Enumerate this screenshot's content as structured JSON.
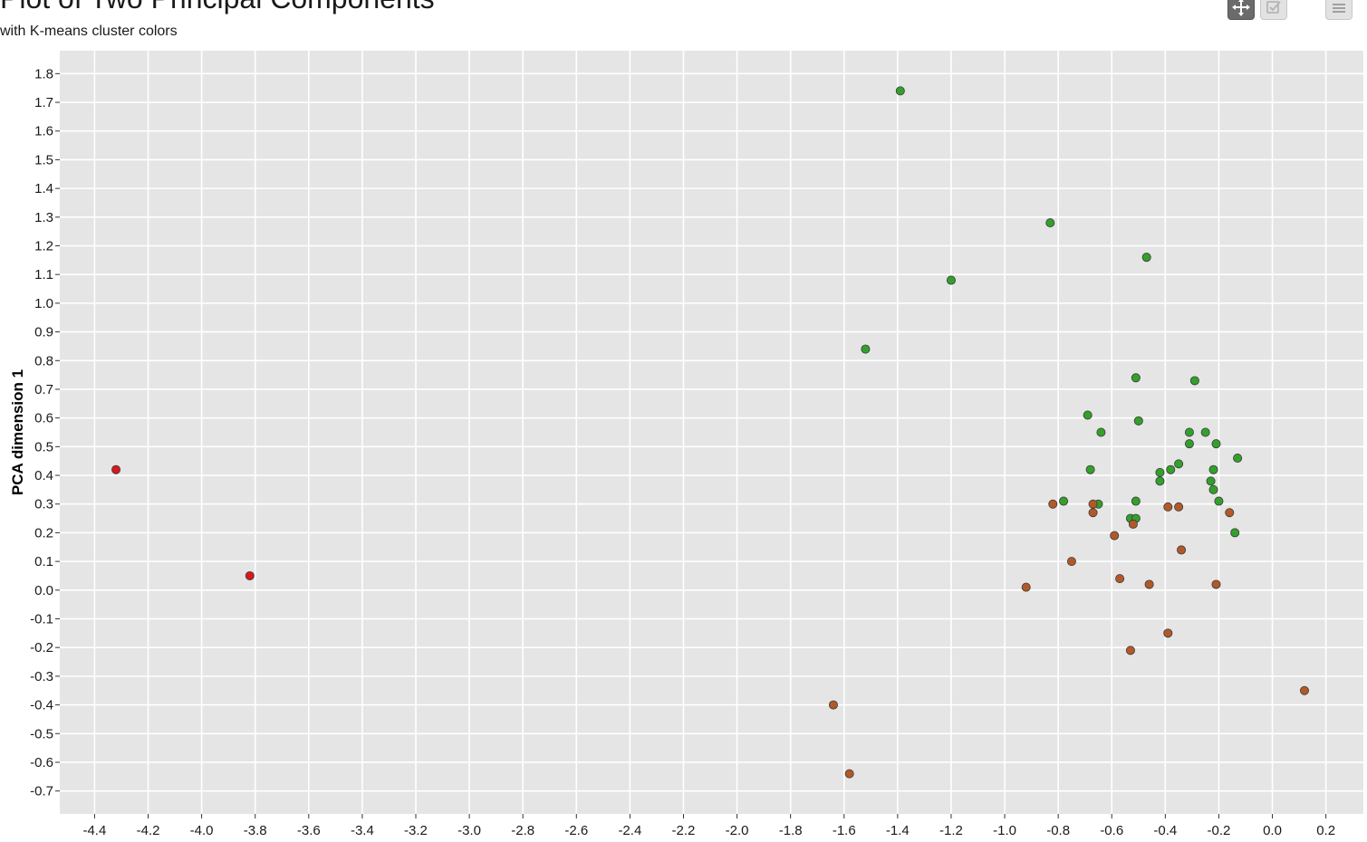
{
  "chart_data": {
    "type": "scatter",
    "title": "Plot of Two Principal Components",
    "subtitle": "with K-means cluster colors",
    "xlabel": "",
    "ylabel": "PCA dimension 1",
    "xlim": [
      -4.53,
      0.34
    ],
    "ylim": [
      -0.78,
      1.88
    ],
    "xticks": [
      "-4.4",
      "-4.2",
      "-4.0",
      "-3.8",
      "-3.6",
      "-3.4",
      "-3.2",
      "-3.0",
      "-2.8",
      "-2.6",
      "-2.4",
      "-2.2",
      "-2.0",
      "-1.8",
      "-1.6",
      "-1.4",
      "-1.2",
      "-1.0",
      "-0.8",
      "-0.6",
      "-0.4",
      "-0.2",
      "0.0",
      "0.2"
    ],
    "yticks": [
      "-0.7",
      "-0.6",
      "-0.5",
      "-0.4",
      "-0.3",
      "-0.2",
      "-0.1",
      "0.0",
      "0.1",
      "0.2",
      "0.3",
      "0.4",
      "0.5",
      "0.6",
      "0.7",
      "0.8",
      "0.9",
      "1.0",
      "1.1",
      "1.2",
      "1.3",
      "1.4",
      "1.5",
      "1.6",
      "1.7",
      "1.8"
    ],
    "grid": true,
    "background": "#e5e5e5",
    "gridColor": "#ffffff",
    "series": [
      {
        "color": "#d7191c",
        "points": [
          [
            -4.32,
            0.42
          ],
          [
            -3.82,
            0.05
          ]
        ]
      },
      {
        "color": "#33a02c",
        "points": [
          [
            -1.39,
            1.74
          ],
          [
            -0.83,
            1.28
          ],
          [
            -1.2,
            1.08
          ],
          [
            -0.47,
            1.16
          ],
          [
            -1.52,
            0.84
          ],
          [
            -0.51,
            0.74
          ],
          [
            -0.29,
            0.73
          ],
          [
            -0.69,
            0.61
          ],
          [
            -0.5,
            0.59
          ],
          [
            -0.64,
            0.55
          ],
          [
            -0.31,
            0.55
          ],
          [
            -0.25,
            0.55
          ],
          [
            -0.31,
            0.51
          ],
          [
            -0.21,
            0.51
          ],
          [
            -0.13,
            0.46
          ],
          [
            -0.35,
            0.44
          ],
          [
            -0.68,
            0.42
          ],
          [
            -0.42,
            0.41
          ],
          [
            -0.38,
            0.42
          ],
          [
            -0.22,
            0.42
          ],
          [
            -0.42,
            0.38
          ],
          [
            -0.23,
            0.38
          ],
          [
            -0.22,
            0.35
          ],
          [
            -0.78,
            0.31
          ],
          [
            -0.65,
            0.3
          ],
          [
            -0.51,
            0.31
          ],
          [
            -0.2,
            0.31
          ],
          [
            -0.53,
            0.25
          ],
          [
            -0.51,
            0.25
          ],
          [
            -0.14,
            0.2
          ]
        ]
      },
      {
        "color": "#b15928",
        "points": [
          [
            -0.82,
            0.3
          ],
          [
            -0.67,
            0.3
          ],
          [
            -0.67,
            0.27
          ],
          [
            -0.39,
            0.29
          ],
          [
            -0.35,
            0.29
          ],
          [
            -0.16,
            0.27
          ],
          [
            -0.52,
            0.23
          ],
          [
            -0.59,
            0.19
          ],
          [
            -0.34,
            0.14
          ],
          [
            -0.75,
            0.1
          ],
          [
            -0.57,
            0.04
          ],
          [
            -0.92,
            0.01
          ],
          [
            -0.46,
            0.02
          ],
          [
            -0.21,
            0.02
          ],
          [
            -0.39,
            -0.15
          ],
          [
            -0.53,
            -0.21
          ],
          [
            0.12,
            -0.35
          ],
          [
            -1.64,
            -0.4
          ],
          [
            -1.58,
            -0.64
          ]
        ]
      }
    ]
  },
  "toolbar": {
    "pan_icon": "move-icon",
    "select_icon": "checkbox-icon",
    "menu_icon": "hamburger-menu-icon"
  }
}
